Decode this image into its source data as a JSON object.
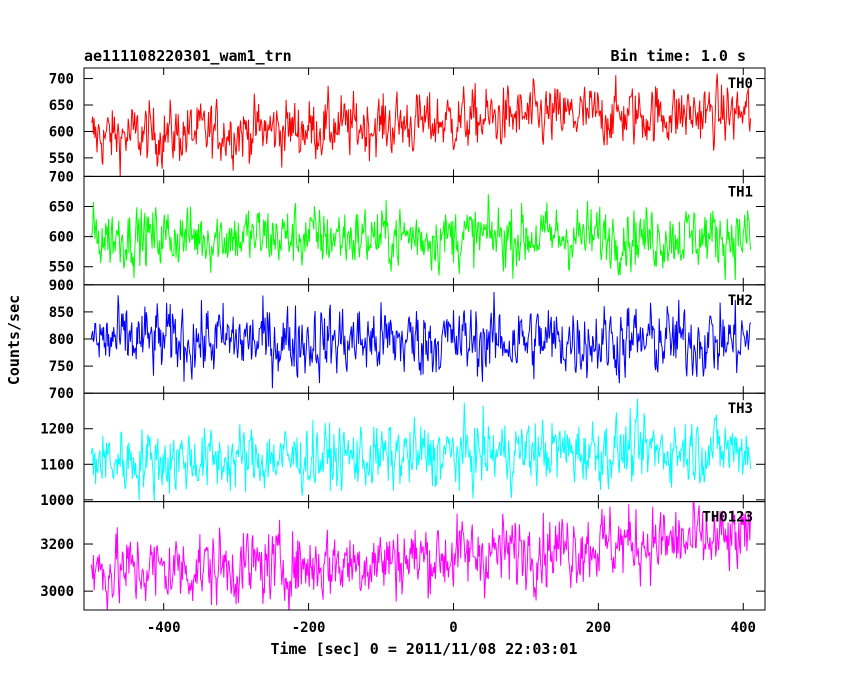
{
  "header": {
    "title": "ae111108220301_wam1_trn",
    "bin_time": "Bin time: 1.0 s"
  },
  "chart_data": {
    "type": "line",
    "xlabel": "Time [sec] 0 = 2011/11/08 22:03:01",
    "ylabel": "Counts/sec",
    "xlim": [
      -510,
      430
    ],
    "xticks": [
      -400,
      -200,
      0,
      200,
      400
    ],
    "x_range": [
      -500,
      410
    ],
    "bin_s": 1.0,
    "panels": [
      {
        "name": "TH0",
        "color": "#ff0000",
        "ylim": [
          515,
          720
        ],
        "yticks": [
          550,
          600,
          650,
          700
        ],
        "trend": [
          [
            -500,
            590
          ],
          [
            -300,
            600
          ],
          [
            -100,
            612
          ],
          [
            100,
            628
          ],
          [
            410,
            635
          ]
        ],
        "noise": 28
      },
      {
        "name": "TH1",
        "color": "#00ff00",
        "ylim": [
          520,
          700
        ],
        "yticks": [
          550,
          600,
          650,
          700
        ],
        "trend": [
          [
            -500,
            600
          ],
          [
            410,
            600
          ]
        ],
        "noise": 25
      },
      {
        "name": "TH2",
        "color": "#0000ff",
        "ylim": [
          700,
          900
        ],
        "yticks": [
          700,
          750,
          800,
          850,
          900
        ],
        "trend": [
          [
            -500,
            797
          ],
          [
            410,
            797
          ]
        ],
        "noise": 32
      },
      {
        "name": "TH3",
        "color": "#00ffff",
        "ylim": [
          995,
          1300
        ],
        "yticks": [
          1000,
          1100,
          1200
        ],
        "trend": [
          [
            -500,
            1110
          ],
          [
            -100,
            1120
          ],
          [
            100,
            1135
          ],
          [
            410,
            1145
          ]
        ],
        "noise": 45
      },
      {
        "name": "TH0123",
        "color": "#ff00ff",
        "ylim": [
          2920,
          3380
        ],
        "yticks": [
          3000,
          3200
        ],
        "trend": [
          [
            -500,
            3085
          ],
          [
            -200,
            3110
          ],
          [
            0,
            3150
          ],
          [
            200,
            3200
          ],
          [
            410,
            3215
          ]
        ],
        "noise": 75
      }
    ]
  }
}
